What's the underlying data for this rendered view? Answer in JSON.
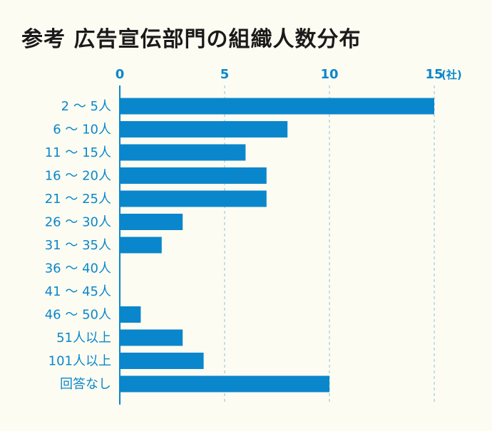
{
  "colors": {
    "accent": "#0a87cc",
    "background": "#fdfcf2",
    "title": "#1a1a1a",
    "grid": "#9ccbe6"
  },
  "chart_data": {
    "type": "bar",
    "orientation": "horizontal",
    "title": "参考 広告宣伝部門の組織人数分布",
    "xlabel": "",
    "ylabel": "",
    "unit": "(社)",
    "xlim": [
      0,
      15
    ],
    "ticks": [
      0,
      5,
      10,
      15
    ],
    "grid": true,
    "categories": [
      "2 ～ 5人",
      "6 ～ 10人",
      "11 ～ 15人",
      "16 ～ 20人",
      "21 ～ 25人",
      "26 ～ 30人",
      "31 ～ 35人",
      "36 ～ 40人",
      "41 ～ 45人",
      "46 ～ 50人",
      "51人以上",
      "101人以上",
      "回答なし"
    ],
    "values": [
      15,
      8,
      6,
      7,
      7,
      3,
      2,
      0,
      0,
      1,
      3,
      4,
      10
    ]
  }
}
